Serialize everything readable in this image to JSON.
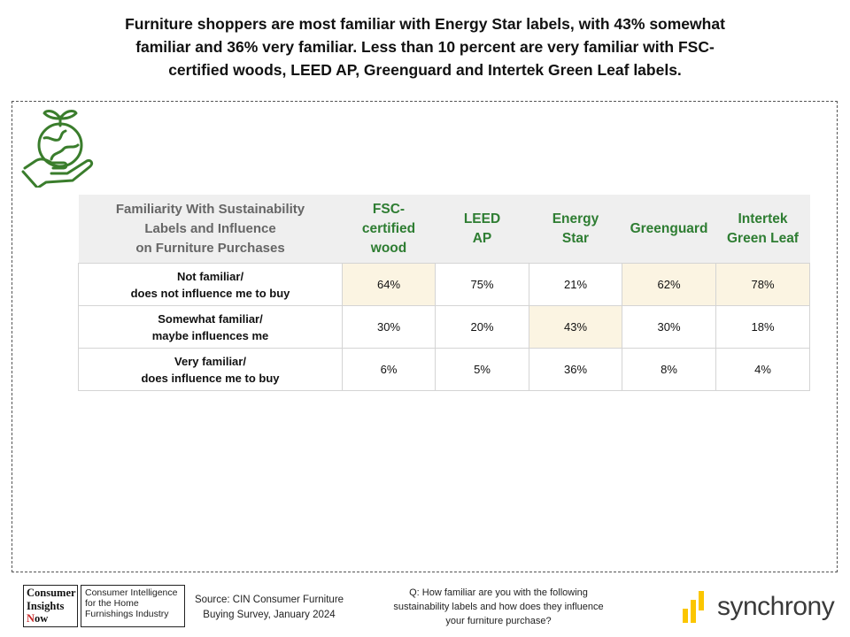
{
  "headline": {
    "line1": "Furniture shoppers are most familiar with Energy Star labels, with 43% somewhat",
    "line2": "familiar and 36% very familiar. Less than 10 percent are very familiar with FSC-",
    "line3": "certified woods, LEED AP, Greenguard and Intertek Green Leaf labels."
  },
  "chart_data": {
    "type": "table",
    "title": "Familiarity With Sustainability Labels and Influence on Furniture Purchases",
    "corner_lines": [
      "Familiarity With Sustainability",
      "Labels and Influence",
      "on Furniture Purchases"
    ],
    "columns": [
      {
        "line1": "FSC-certified",
        "line2": "wood"
      },
      {
        "line1": "LEED",
        "line2": "AP"
      },
      {
        "line1": "Energy",
        "line2": "Star"
      },
      {
        "line1": "Greenguard",
        "line2": ""
      },
      {
        "line1": "Intertek",
        "line2": "Green Leaf"
      }
    ],
    "rows": [
      {
        "line1": "Not familiar/",
        "line2": "does not influence me to buy",
        "values": [
          "64%",
          "75%",
          "21%",
          "62%",
          "78%"
        ],
        "highlight": [
          true,
          false,
          false,
          true,
          true
        ]
      },
      {
        "line1": "Somewhat familiar/",
        "line2": "maybe influences me",
        "values": [
          "30%",
          "20%",
          "43%",
          "30%",
          "18%"
        ],
        "highlight": [
          false,
          false,
          true,
          false,
          false
        ]
      },
      {
        "line1": "Very familiar/",
        "line2": "does influence me to buy",
        "values": [
          "6%",
          "5%",
          "36%",
          "8%",
          "4%"
        ],
        "highlight": [
          false,
          false,
          false,
          false,
          false
        ]
      }
    ],
    "colors": {
      "header_text": "#2e7d32",
      "header_bg": "#efefef",
      "highlight_bg": "#fbf4e2"
    }
  },
  "footer": {
    "logo": {
      "line1": "Consumer",
      "line2": "Insights",
      "line3_first": "N",
      "line3_rest": "ow",
      "tag1": "Consumer Intelligence",
      "tag2": "for the Home",
      "tag3": "Furnishings Industry"
    },
    "source_line1": "Source: CIN Consumer Furniture",
    "source_line2": "Buying Survey, January 2024",
    "question_line1": "Q: How familiar are you with the following",
    "question_line2": "sustainability labels and how does they influence",
    "question_line3": "your furniture purchase?",
    "brand": "synchrony",
    "icon_colors": {
      "eco": "#3a7d2c",
      "brand_bars": "#fbc600"
    }
  }
}
